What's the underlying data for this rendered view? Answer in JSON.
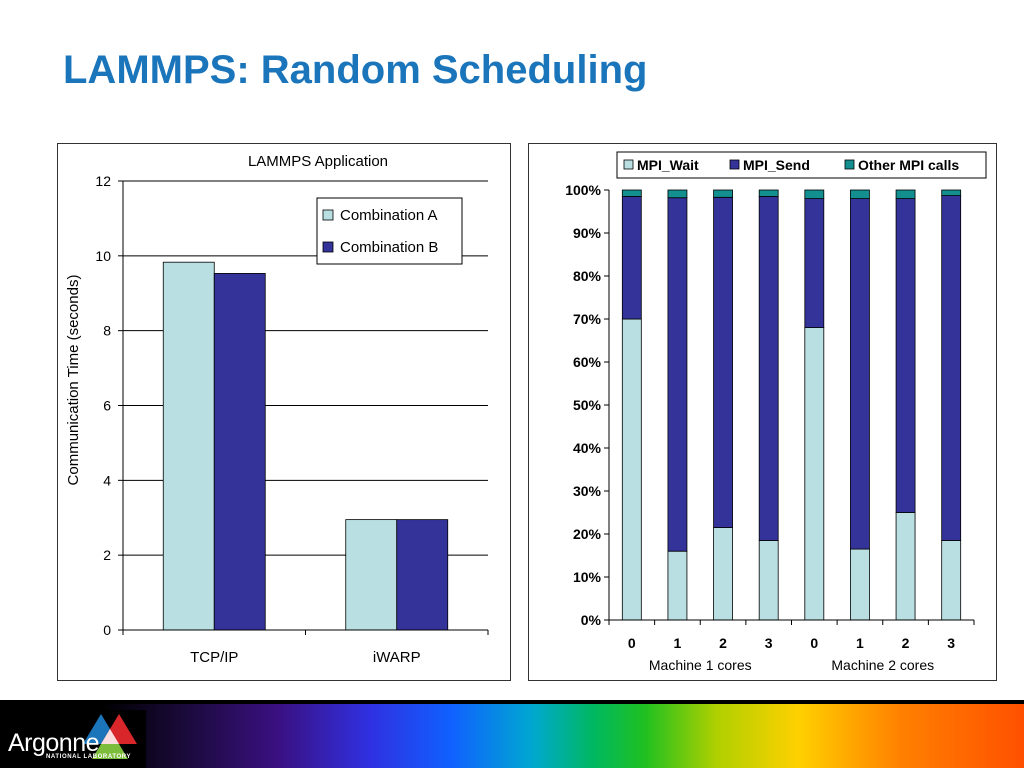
{
  "slide": {
    "title": "LAMMPS: Random Scheduling"
  },
  "footer": {
    "logo_name": "Argonne",
    "logo_subtitle": "NATIONAL LABORATORY"
  },
  "colors": {
    "title": "#1b75bb",
    "comb_a": "#b9dfe3",
    "comb_b": "#333399",
    "mpi_wait": "#b9dfe3",
    "mpi_send": "#333399",
    "other_mpi": "#138f8f"
  },
  "chart_data": [
    {
      "type": "bar",
      "title": "LAMMPS Application",
      "categories": [
        "TCP/IP",
        "iWARP"
      ],
      "series": [
        {
          "name": "Combination A",
          "values": [
            9.83,
            2.95
          ]
        },
        {
          "name": "Combination B",
          "values": [
            9.53,
            2.95
          ]
        }
      ],
      "xlabel": "",
      "ylabel": "Communication Time (seconds)",
      "ylim": [
        0,
        12
      ],
      "yticks": [
        "0",
        "2",
        "4",
        "6",
        "8",
        "10",
        "12"
      ],
      "legend": "top-right",
      "grid": true
    },
    {
      "type": "bar",
      "stacked": "percent",
      "categories": [
        "0",
        "1",
        "2",
        "3",
        "0",
        "1",
        "2",
        "3"
      ],
      "groups": [
        "Machine 1 cores",
        "Machine 2 cores"
      ],
      "series": [
        {
          "name": "MPI_Wait",
          "values": [
            70,
            16,
            21.5,
            18.5,
            68,
            16.5,
            25,
            18.5
          ]
        },
        {
          "name": "MPI_Send",
          "values": [
            28.5,
            82.2,
            76.8,
            80,
            30,
            81.5,
            73,
            80.2
          ]
        },
        {
          "name": "Other MPI calls",
          "values": [
            1.5,
            1.8,
            1.7,
            1.5,
            2,
            2,
            2,
            1.3
          ]
        }
      ],
      "yticks": [
        "0%",
        "10%",
        "20%",
        "30%",
        "40%",
        "50%",
        "60%",
        "70%",
        "80%",
        "90%",
        "100%"
      ],
      "ylim": [
        0,
        100
      ],
      "legend": "top",
      "grid": false
    }
  ]
}
